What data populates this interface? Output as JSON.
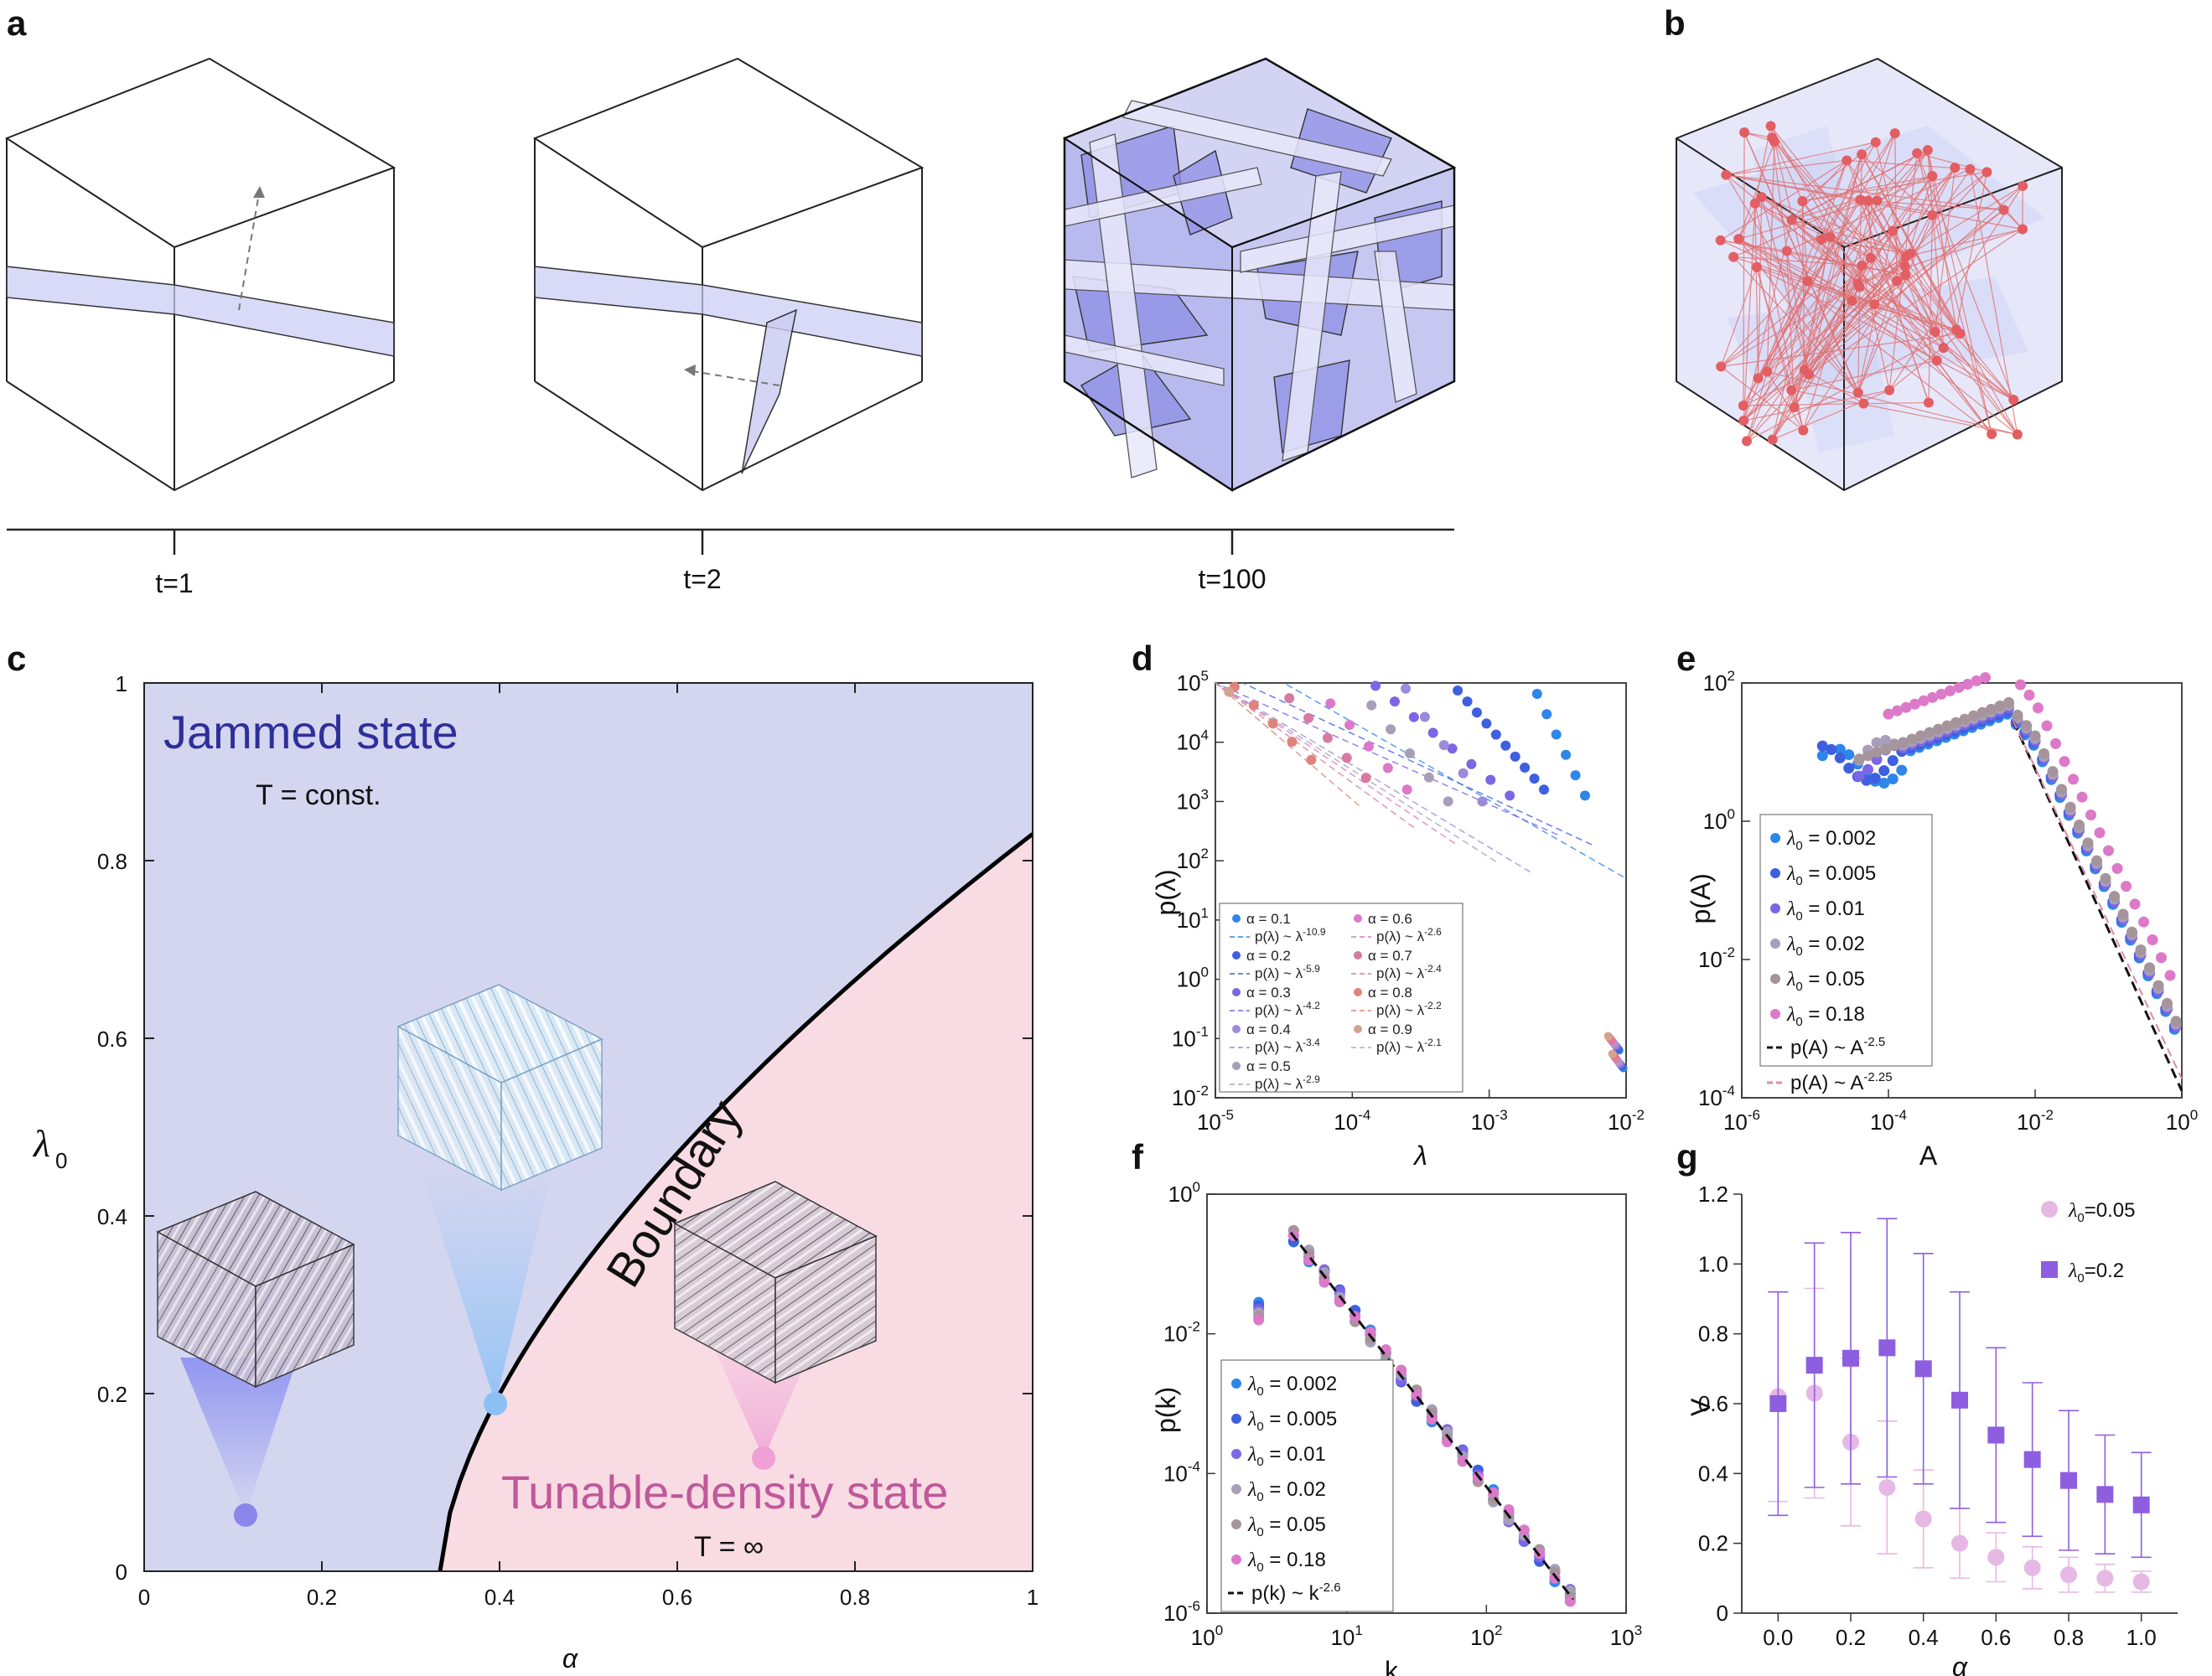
{
  "panel_labels": {
    "a": "a",
    "b": "b",
    "c": "c",
    "d": "d",
    "e": "e",
    "f": "f",
    "g": "g"
  },
  "timeline": {
    "ticks": [
      "t=1",
      "t=2",
      "t=100"
    ]
  },
  "phase_diagram": {
    "jammed_title": "Jammed state",
    "jammed_sub": "T = const.",
    "tunable_title": "Tunable-density state",
    "tunable_sub": "T = ∞",
    "boundary_label": "Boundary",
    "xlabel": "α",
    "ylabel": "λ",
    "ylabel_sub": "0",
    "xticks": [
      "0",
      "0.2",
      "0.4",
      "0.6",
      "0.8",
      "1"
    ],
    "yticks": [
      "0",
      "0.2",
      "0.4",
      "0.6",
      "0.8",
      "1"
    ],
    "colors": {
      "jammed": "#d4d6f0",
      "tunable": "#f8dbe3",
      "jammed_text": "#2f2f9a",
      "tunable_text": "#c0589a"
    }
  },
  "chart_data": [
    {
      "id": "d",
      "type": "scatter",
      "xscale": "log",
      "yscale": "log",
      "xlabel": "λ",
      "ylabel": "p(λ)",
      "xlim": [
        -5,
        -2
      ],
      "ylim": [
        -2,
        5
      ],
      "xticks": [
        "10",
        "10",
        "10",
        "10"
      ],
      "xtick_exp": [
        "-5",
        "-4",
        "-3",
        "-2"
      ],
      "yticks": [
        "10",
        "10",
        "10",
        "10",
        "10",
        "10",
        "10",
        "10"
      ],
      "ytick_exp": [
        "-2",
        "-1",
        "0",
        "1",
        "2",
        "3",
        "4",
        "5"
      ],
      "series": [
        {
          "alpha": "0.1",
          "fit": "p(λ) ~ λ",
          "exp": "-10.9",
          "color": "#2f86ea",
          "x0": -2.3,
          "y0": 3.1,
          "slope": -10.9
        },
        {
          "alpha": "0.2",
          "fit": "p(λ) ~ λ",
          "exp": "-5.9",
          "color": "#3e5fe0",
          "x0": -2.6,
          "y0": 3.2,
          "slope": -5.9
        },
        {
          "alpha": "0.3",
          "fit": "p(λ) ~ λ",
          "exp": "-4.2",
          "color": "#7c66e6",
          "x0": -2.85,
          "y0": 3.1,
          "slope": -4.2
        },
        {
          "alpha": "0.4",
          "fit": "p(λ) ~ λ",
          "exp": "-3.4",
          "color": "#9c8bd9",
          "x0": -3.05,
          "y0": 3.0,
          "slope": -3.4
        },
        {
          "alpha": "0.5",
          "fit": "p(λ) ~ λ",
          "exp": "-2.9",
          "color": "#a79fba",
          "x0": -3.3,
          "y0": 3.0,
          "slope": -2.9
        },
        {
          "alpha": "0.6",
          "fit": "p(λ) ~ λ",
          "exp": "-2.6",
          "color": "#dc79c8",
          "x0": -3.6,
          "y0": 3.2,
          "slope": -2.6
        },
        {
          "alpha": "0.7",
          "fit": "p(λ) ~ λ",
          "exp": "-2.4",
          "color": "#d97aa0",
          "x0": -3.9,
          "y0": 3.4,
          "slope": -2.4
        },
        {
          "alpha": "0.8",
          "fit": "p(λ) ~ λ",
          "exp": "-2.2",
          "color": "#e0827c",
          "x0": -4.3,
          "y0": 3.7,
          "slope": -2.2
        },
        {
          "alpha": "0.9",
          "fit": "p(λ) ~ λ",
          "exp": "-2.1",
          "color": "#d4a38e",
          "x0": -4.9,
          "y0": 4.85,
          "slope": -2.1
        }
      ],
      "legend_prefix": "α ="
    },
    {
      "id": "e",
      "type": "scatter",
      "xscale": "log",
      "yscale": "log",
      "xlabel": "A",
      "ylabel": "p(A)",
      "xlim": [
        -6,
        0
      ],
      "ylim": [
        -4,
        2
      ],
      "xticks": [
        "10",
        "10",
        "10",
        "10"
      ],
      "xtick_exp": [
        "-6",
        "-4",
        "-2",
        "0"
      ],
      "yticks": [
        "10",
        "10",
        "10",
        "10"
      ],
      "ytick_exp": [
        "-4",
        "-2",
        "0",
        "2"
      ],
      "series": [
        {
          "label": "= 0.002",
          "color": "#2f86ea"
        },
        {
          "label": "= 0.005",
          "color": "#3e5fe0"
        },
        {
          "label": "= 0.01",
          "color": "#7c66e6"
        },
        {
          "label": "= 0.02",
          "color": "#a79fba"
        },
        {
          "label": "= 0.05",
          "color": "#a5949b"
        },
        {
          "label": "= 0.18",
          "color": "#dc79c8"
        }
      ],
      "fits": [
        {
          "label": "p(A) ~ A",
          "exp": "-2.5",
          "color": "#111111",
          "dash": "12,7"
        },
        {
          "label": "p(A) ~ A",
          "exp": "-2.25",
          "color": "#e089a8",
          "dash": "10,6"
        }
      ]
    },
    {
      "id": "f",
      "type": "scatter",
      "xscale": "log",
      "yscale": "log",
      "xlabel": "k",
      "ylabel": "p(k)",
      "xlim": [
        0,
        3
      ],
      "ylim": [
        -6,
        0
      ],
      "xticks": [
        "10",
        "10",
        "10",
        "10"
      ],
      "xtick_exp": [
        "0",
        "1",
        "2",
        "3"
      ],
      "yticks": [
        "10",
        "10",
        "10",
        "10"
      ],
      "ytick_exp": [
        "-6",
        "-4",
        "-2",
        "0"
      ],
      "series": [
        {
          "label": "= 0.002",
          "color": "#2f86ea"
        },
        {
          "label": "= 0.005",
          "color": "#3e5fe0"
        },
        {
          "label": "= 0.01",
          "color": "#7c66e6"
        },
        {
          "label": "= 0.02",
          "color": "#a79fba"
        },
        {
          "label": "= 0.05",
          "color": "#a5949b"
        },
        {
          "label": "= 0.18",
          "color": "#dc79c8"
        }
      ],
      "fits": [
        {
          "label": "p(k) ~ k",
          "exp": "-2.6",
          "color": "#111111",
          "dash": "12,7"
        }
      ]
    },
    {
      "id": "g",
      "type": "scatter",
      "xlabel": "α",
      "ylabel": "V",
      "xlim": [
        -0.1,
        1.1
      ],
      "ylim": [
        0,
        1.2
      ],
      "xticks": [
        "0.0",
        "0.2",
        "0.4",
        "0.6",
        "0.8",
        "1.0"
      ],
      "yticks": [
        "0",
        "0.2",
        "0.4",
        "0.6",
        "0.8",
        "1.0",
        "1.2"
      ],
      "x": [
        0.0,
        0.1,
        0.2,
        0.3,
        0.4,
        0.5,
        0.6,
        0.7,
        0.8,
        0.9,
        1.0
      ],
      "series": [
        {
          "name": "=0.05",
          "color": "#e6b8e4",
          "marker": "circle",
          "values": [
            0.62,
            0.63,
            0.49,
            0.36,
            0.27,
            0.2,
            0.16,
            0.13,
            0.11,
            0.1,
            0.09
          ],
          "err": [
            0.3,
            0.3,
            0.24,
            0.19,
            0.14,
            0.1,
            0.07,
            0.06,
            0.05,
            0.04,
            0.03
          ]
        },
        {
          "name": "=0.2",
          "color": "#8e5ee0",
          "marker": "square",
          "values": [
            0.6,
            0.71,
            0.73,
            0.76,
            0.7,
            0.61,
            0.51,
            0.44,
            0.38,
            0.34,
            0.31
          ],
          "err": [
            0.32,
            0.35,
            0.36,
            0.37,
            0.33,
            0.31,
            0.25,
            0.22,
            0.2,
            0.17,
            0.15
          ]
        }
      ]
    }
  ]
}
